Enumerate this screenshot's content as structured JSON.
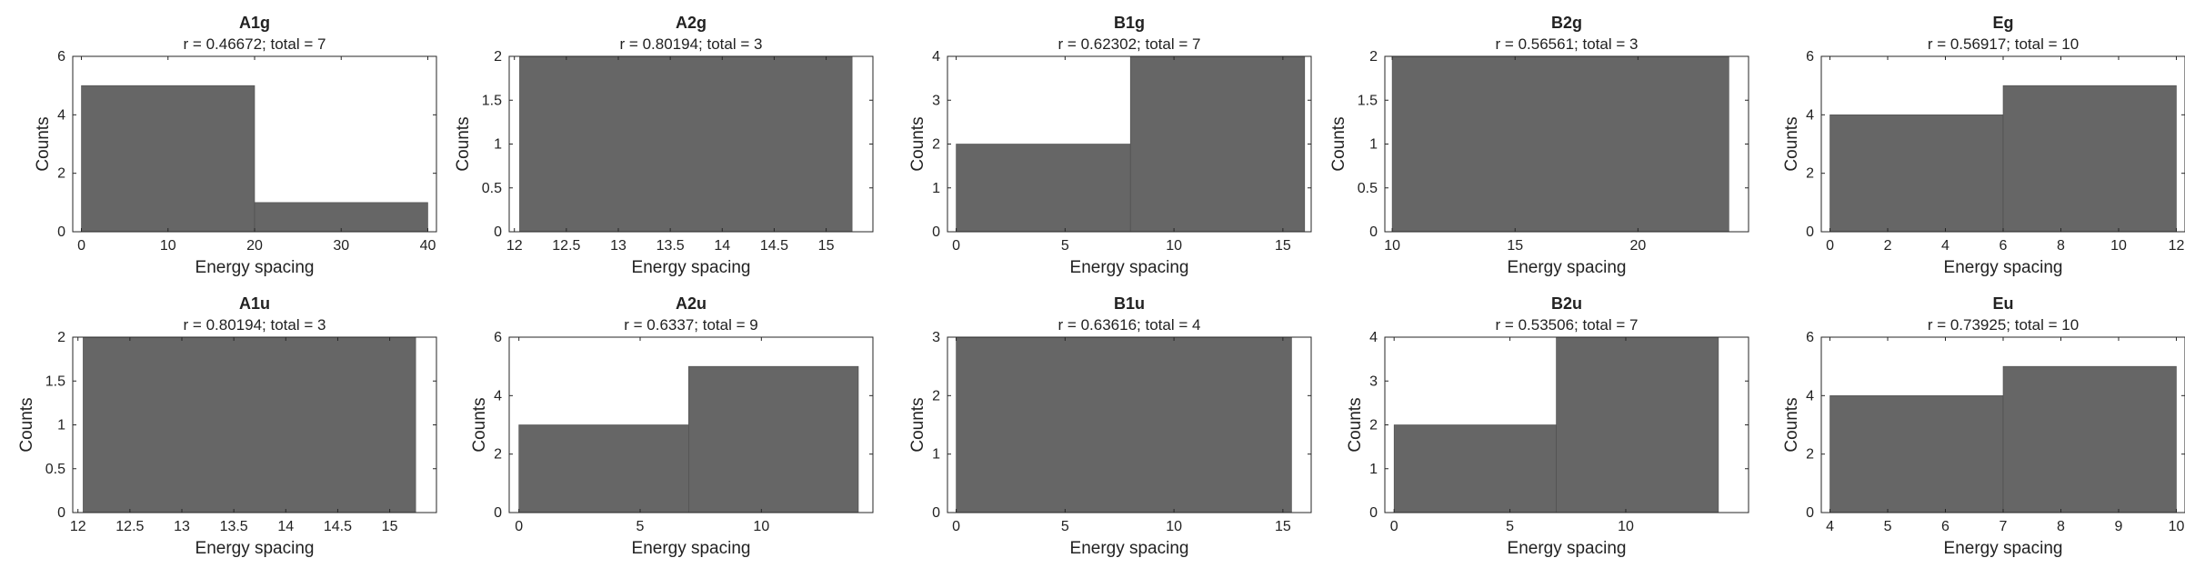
{
  "colors": {
    "bar_fill": "#666666",
    "axis": "#262626",
    "background": "#ffffff"
  },
  "chart_data": [
    {
      "type": "bar",
      "title": "A1g",
      "subtitle": "r = 0.46672; total = 7",
      "xlabel": "Energy spacing",
      "ylabel": "Counts",
      "xlim": [
        -1,
        41
      ],
      "ylim": [
        0,
        6
      ],
      "xticks": [
        "0",
        "10",
        "20",
        "30",
        "40"
      ],
      "yticks": [
        "0",
        "2",
        "4",
        "6"
      ],
      "bins": [
        {
          "from": 0,
          "to": 20,
          "count": 5
        },
        {
          "from": 20,
          "to": 40,
          "count": 1
        }
      ]
    },
    {
      "type": "bar",
      "title": "A2g",
      "subtitle": "r = 0.80194; total = 3",
      "xlabel": "Energy spacing",
      "ylabel": "Counts",
      "xlim": [
        11.95,
        15.45
      ],
      "ylim": [
        0,
        2
      ],
      "xticks": [
        "12",
        "12.5",
        "13",
        "13.5",
        "14",
        "14.5",
        "15"
      ],
      "yticks": [
        "0",
        "0.5",
        "1",
        "1.5",
        "2"
      ],
      "bins": [
        {
          "from": 12.05,
          "to": 15.25,
          "count": 2
        }
      ]
    },
    {
      "type": "bar",
      "title": "B1g",
      "subtitle": "r = 0.62302; total = 7",
      "xlabel": "Energy spacing",
      "ylabel": "Counts",
      "xlim": [
        -0.4,
        16.3
      ],
      "ylim": [
        0,
        4
      ],
      "xticks": [
        "0",
        "5",
        "10",
        "15"
      ],
      "yticks": [
        "0",
        "1",
        "2",
        "3",
        "4"
      ],
      "bins": [
        {
          "from": 0,
          "to": 8,
          "count": 2
        },
        {
          "from": 8,
          "to": 16,
          "count": 4
        }
      ]
    },
    {
      "type": "bar",
      "title": "B2g",
      "subtitle": "r = 0.56561; total = 3",
      "xlabel": "Energy spacing",
      "ylabel": "Counts",
      "xlim": [
        9.7,
        24.5
      ],
      "ylim": [
        0,
        2
      ],
      "xticks": [
        "10",
        "15",
        "20"
      ],
      "yticks": [
        "0",
        "0.5",
        "1",
        "1.5",
        "2"
      ],
      "bins": [
        {
          "from": 10,
          "to": 23.7,
          "count": 2
        }
      ]
    },
    {
      "type": "bar",
      "title": "Eg",
      "subtitle": "r = 0.56917; total = 10",
      "xlabel": "Energy spacing",
      "ylabel": "Counts",
      "xlim": [
        -0.3,
        12.3
      ],
      "ylim": [
        0,
        6
      ],
      "xticks": [
        "0",
        "2",
        "4",
        "6",
        "8",
        "10",
        "12"
      ],
      "yticks": [
        "0",
        "2",
        "4",
        "6"
      ],
      "bins": [
        {
          "from": 0,
          "to": 6,
          "count": 4
        },
        {
          "from": 6,
          "to": 12,
          "count": 5
        }
      ]
    },
    {
      "type": "bar",
      "title": "A1u",
      "subtitle": "r = 0.80194; total = 3",
      "xlabel": "Energy spacing",
      "ylabel": "Counts",
      "xlim": [
        11.95,
        15.45
      ],
      "ylim": [
        0,
        2
      ],
      "xticks": [
        "12",
        "12.5",
        "13",
        "13.5",
        "14",
        "14.5",
        "15"
      ],
      "yticks": [
        "0",
        "0.5",
        "1",
        "1.5",
        "2"
      ],
      "bins": [
        {
          "from": 12.05,
          "to": 15.25,
          "count": 2
        }
      ]
    },
    {
      "type": "bar",
      "title": "A2u",
      "subtitle": "r = 0.6337; total = 9",
      "xlabel": "Energy spacing",
      "ylabel": "Counts",
      "xlim": [
        -0.4,
        14.6
      ],
      "ylim": [
        0,
        6
      ],
      "xticks": [
        "0",
        "5",
        "10"
      ],
      "yticks": [
        "0",
        "2",
        "4",
        "6"
      ],
      "bins": [
        {
          "from": 0,
          "to": 7,
          "count": 3
        },
        {
          "from": 7,
          "to": 14,
          "count": 5
        }
      ]
    },
    {
      "type": "bar",
      "title": "B1u",
      "subtitle": "r = 0.63616; total = 4",
      "xlabel": "Energy spacing",
      "ylabel": "Counts",
      "xlim": [
        -0.4,
        16.3
      ],
      "ylim": [
        0,
        3
      ],
      "xticks": [
        "0",
        "5",
        "10",
        "15"
      ],
      "yticks": [
        "0",
        "1",
        "2",
        "3"
      ],
      "bins": [
        {
          "from": 0,
          "to": 15.4,
          "count": 3
        }
      ]
    },
    {
      "type": "bar",
      "title": "B2u",
      "subtitle": "r = 0.53506; total = 7",
      "xlabel": "Energy spacing",
      "ylabel": "Counts",
      "xlim": [
        -0.4,
        15.3
      ],
      "ylim": [
        0,
        4
      ],
      "xticks": [
        "0",
        "5",
        "10"
      ],
      "yticks": [
        "0",
        "1",
        "2",
        "3",
        "4"
      ],
      "bins": [
        {
          "from": 0,
          "to": 7,
          "count": 2
        },
        {
          "from": 7,
          "to": 14,
          "count": 4
        }
      ]
    },
    {
      "type": "bar",
      "title": "Eu",
      "subtitle": "r = 0.73925; total = 10",
      "xlabel": "Energy spacing",
      "ylabel": "Counts",
      "xlim": [
        3.85,
        10.15
      ],
      "ylim": [
        0,
        6
      ],
      "xticks": [
        "4",
        "5",
        "6",
        "7",
        "8",
        "9",
        "10"
      ],
      "yticks": [
        "0",
        "2",
        "4",
        "6"
      ],
      "bins": [
        {
          "from": 4,
          "to": 7,
          "count": 4
        },
        {
          "from": 7,
          "to": 10,
          "count": 5
        }
      ]
    }
  ]
}
